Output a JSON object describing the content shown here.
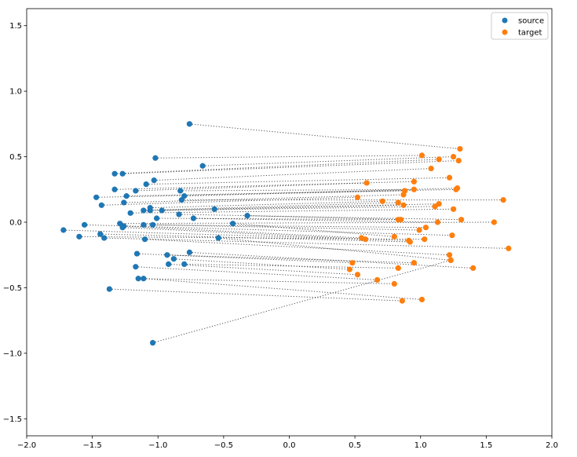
{
  "chart_data": {
    "type": "scatter",
    "title": "",
    "xlabel": "",
    "ylabel": "",
    "xlim": [
      -2.0,
      2.0
    ],
    "ylim": [
      -1.63,
      1.63
    ],
    "xticks": [
      "−2.0",
      "−1.5",
      "−1.0",
      "−0.5",
      "0.0",
      "0.5",
      "1.0",
      "1.5",
      "2.0"
    ],
    "xtick_values": [
      -2.0,
      -1.5,
      -1.0,
      -0.5,
      0.0,
      0.5,
      1.0,
      1.5,
      2.0
    ],
    "yticks": [
      "−1.5",
      "−1.0",
      "−0.5",
      "0.0",
      "0.5",
      "1.0",
      "1.5"
    ],
    "ytick_values": [
      -1.5,
      -1.0,
      -0.5,
      0.0,
      0.5,
      1.0,
      1.5
    ],
    "grid": false,
    "legend_position": "top-right",
    "series": [
      {
        "name": "source",
        "color": "#1f77b4",
        "points": [
          [
            -0.76,
            0.75
          ],
          [
            -1.02,
            0.49
          ],
          [
            -0.66,
            0.43
          ],
          [
            -1.33,
            0.37
          ],
          [
            -1.27,
            0.37
          ],
          [
            -1.03,
            0.32
          ],
          [
            -1.09,
            0.29
          ],
          [
            -1.33,
            0.25
          ],
          [
            -1.17,
            0.24
          ],
          [
            -0.83,
            0.24
          ],
          [
            -0.8,
            0.2
          ],
          [
            -1.24,
            0.2
          ],
          [
            -1.47,
            0.19
          ],
          [
            -1.26,
            0.15
          ],
          [
            -1.43,
            0.13
          ],
          [
            -0.82,
            0.17
          ],
          [
            -1.06,
            0.11
          ],
          [
            -1.11,
            0.09
          ],
          [
            -1.06,
            0.09
          ],
          [
            -0.97,
            0.09
          ],
          [
            -0.57,
            0.1
          ],
          [
            -1.21,
            0.07
          ],
          [
            -0.84,
            0.06
          ],
          [
            -0.32,
            0.05
          ],
          [
            -1.01,
            0.03
          ],
          [
            -0.73,
            0.03
          ],
          [
            -1.29,
            -0.01
          ],
          [
            -1.11,
            -0.02
          ],
          [
            -1.04,
            -0.02
          ],
          [
            -0.43,
            -0.01
          ],
          [
            -1.56,
            -0.02
          ],
          [
            -1.26,
            -0.03
          ],
          [
            -1.27,
            -0.04
          ],
          [
            -1.72,
            -0.06
          ],
          [
            -1.44,
            -0.09
          ],
          [
            -1.6,
            -0.11
          ],
          [
            -1.41,
            -0.12
          ],
          [
            -1.1,
            -0.13
          ],
          [
            -0.54,
            -0.12
          ],
          [
            -1.16,
            -0.24
          ],
          [
            -0.93,
            -0.25
          ],
          [
            -0.76,
            -0.23
          ],
          [
            -0.88,
            -0.28
          ],
          [
            -0.8,
            -0.32
          ],
          [
            -0.92,
            -0.32
          ],
          [
            -1.17,
            -0.34
          ],
          [
            -1.15,
            -0.43
          ],
          [
            -1.11,
            -0.43
          ],
          [
            -1.37,
            -0.51
          ],
          [
            -1.04,
            -0.92
          ]
        ]
      },
      {
        "name": "target",
        "color": "#ff7f0e",
        "points": [
          [
            1.3,
            0.56
          ],
          [
            1.01,
            0.51
          ],
          [
            1.25,
            0.5
          ],
          [
            1.14,
            0.48
          ],
          [
            1.29,
            0.47
          ],
          [
            1.08,
            0.41
          ],
          [
            1.22,
            0.34
          ],
          [
            0.95,
            0.31
          ],
          [
            0.59,
            0.3
          ],
          [
            0.95,
            0.25
          ],
          [
            1.28,
            0.26
          ],
          [
            1.27,
            0.25
          ],
          [
            0.88,
            0.24
          ],
          [
            0.87,
            0.21
          ],
          [
            0.52,
            0.19
          ],
          [
            1.63,
            0.17
          ],
          [
            0.71,
            0.16
          ],
          [
            0.83,
            0.15
          ],
          [
            1.14,
            0.14
          ],
          [
            1.11,
            0.12
          ],
          [
            0.87,
            0.13
          ],
          [
            1.25,
            0.1
          ],
          [
            1.31,
            0.02
          ],
          [
            0.85,
            0.02
          ],
          [
            0.83,
            0.02
          ],
          [
            1.13,
            0.0
          ],
          [
            1.56,
            0.0
          ],
          [
            1.04,
            -0.04
          ],
          [
            0.99,
            -0.06
          ],
          [
            0.8,
            -0.11
          ],
          [
            1.24,
            -0.1
          ],
          [
            0.55,
            -0.12
          ],
          [
            0.58,
            -0.13
          ],
          [
            0.91,
            -0.14
          ],
          [
            0.92,
            -0.15
          ],
          [
            1.03,
            -0.13
          ],
          [
            1.67,
            -0.2
          ],
          [
            1.22,
            -0.25
          ],
          [
            1.23,
            -0.29
          ],
          [
            0.48,
            -0.31
          ],
          [
            0.95,
            -0.31
          ],
          [
            1.4,
            -0.35
          ],
          [
            0.46,
            -0.36
          ],
          [
            0.83,
            -0.35
          ],
          [
            0.52,
            -0.4
          ],
          [
            0.67,
            -0.44
          ],
          [
            0.8,
            -0.47
          ],
          [
            1.01,
            -0.59
          ],
          [
            0.86,
            -0.6
          ],
          [
            1.23,
            -0.29
          ]
        ]
      }
    ],
    "connections": "dotted line from each source point to its paired target point"
  }
}
